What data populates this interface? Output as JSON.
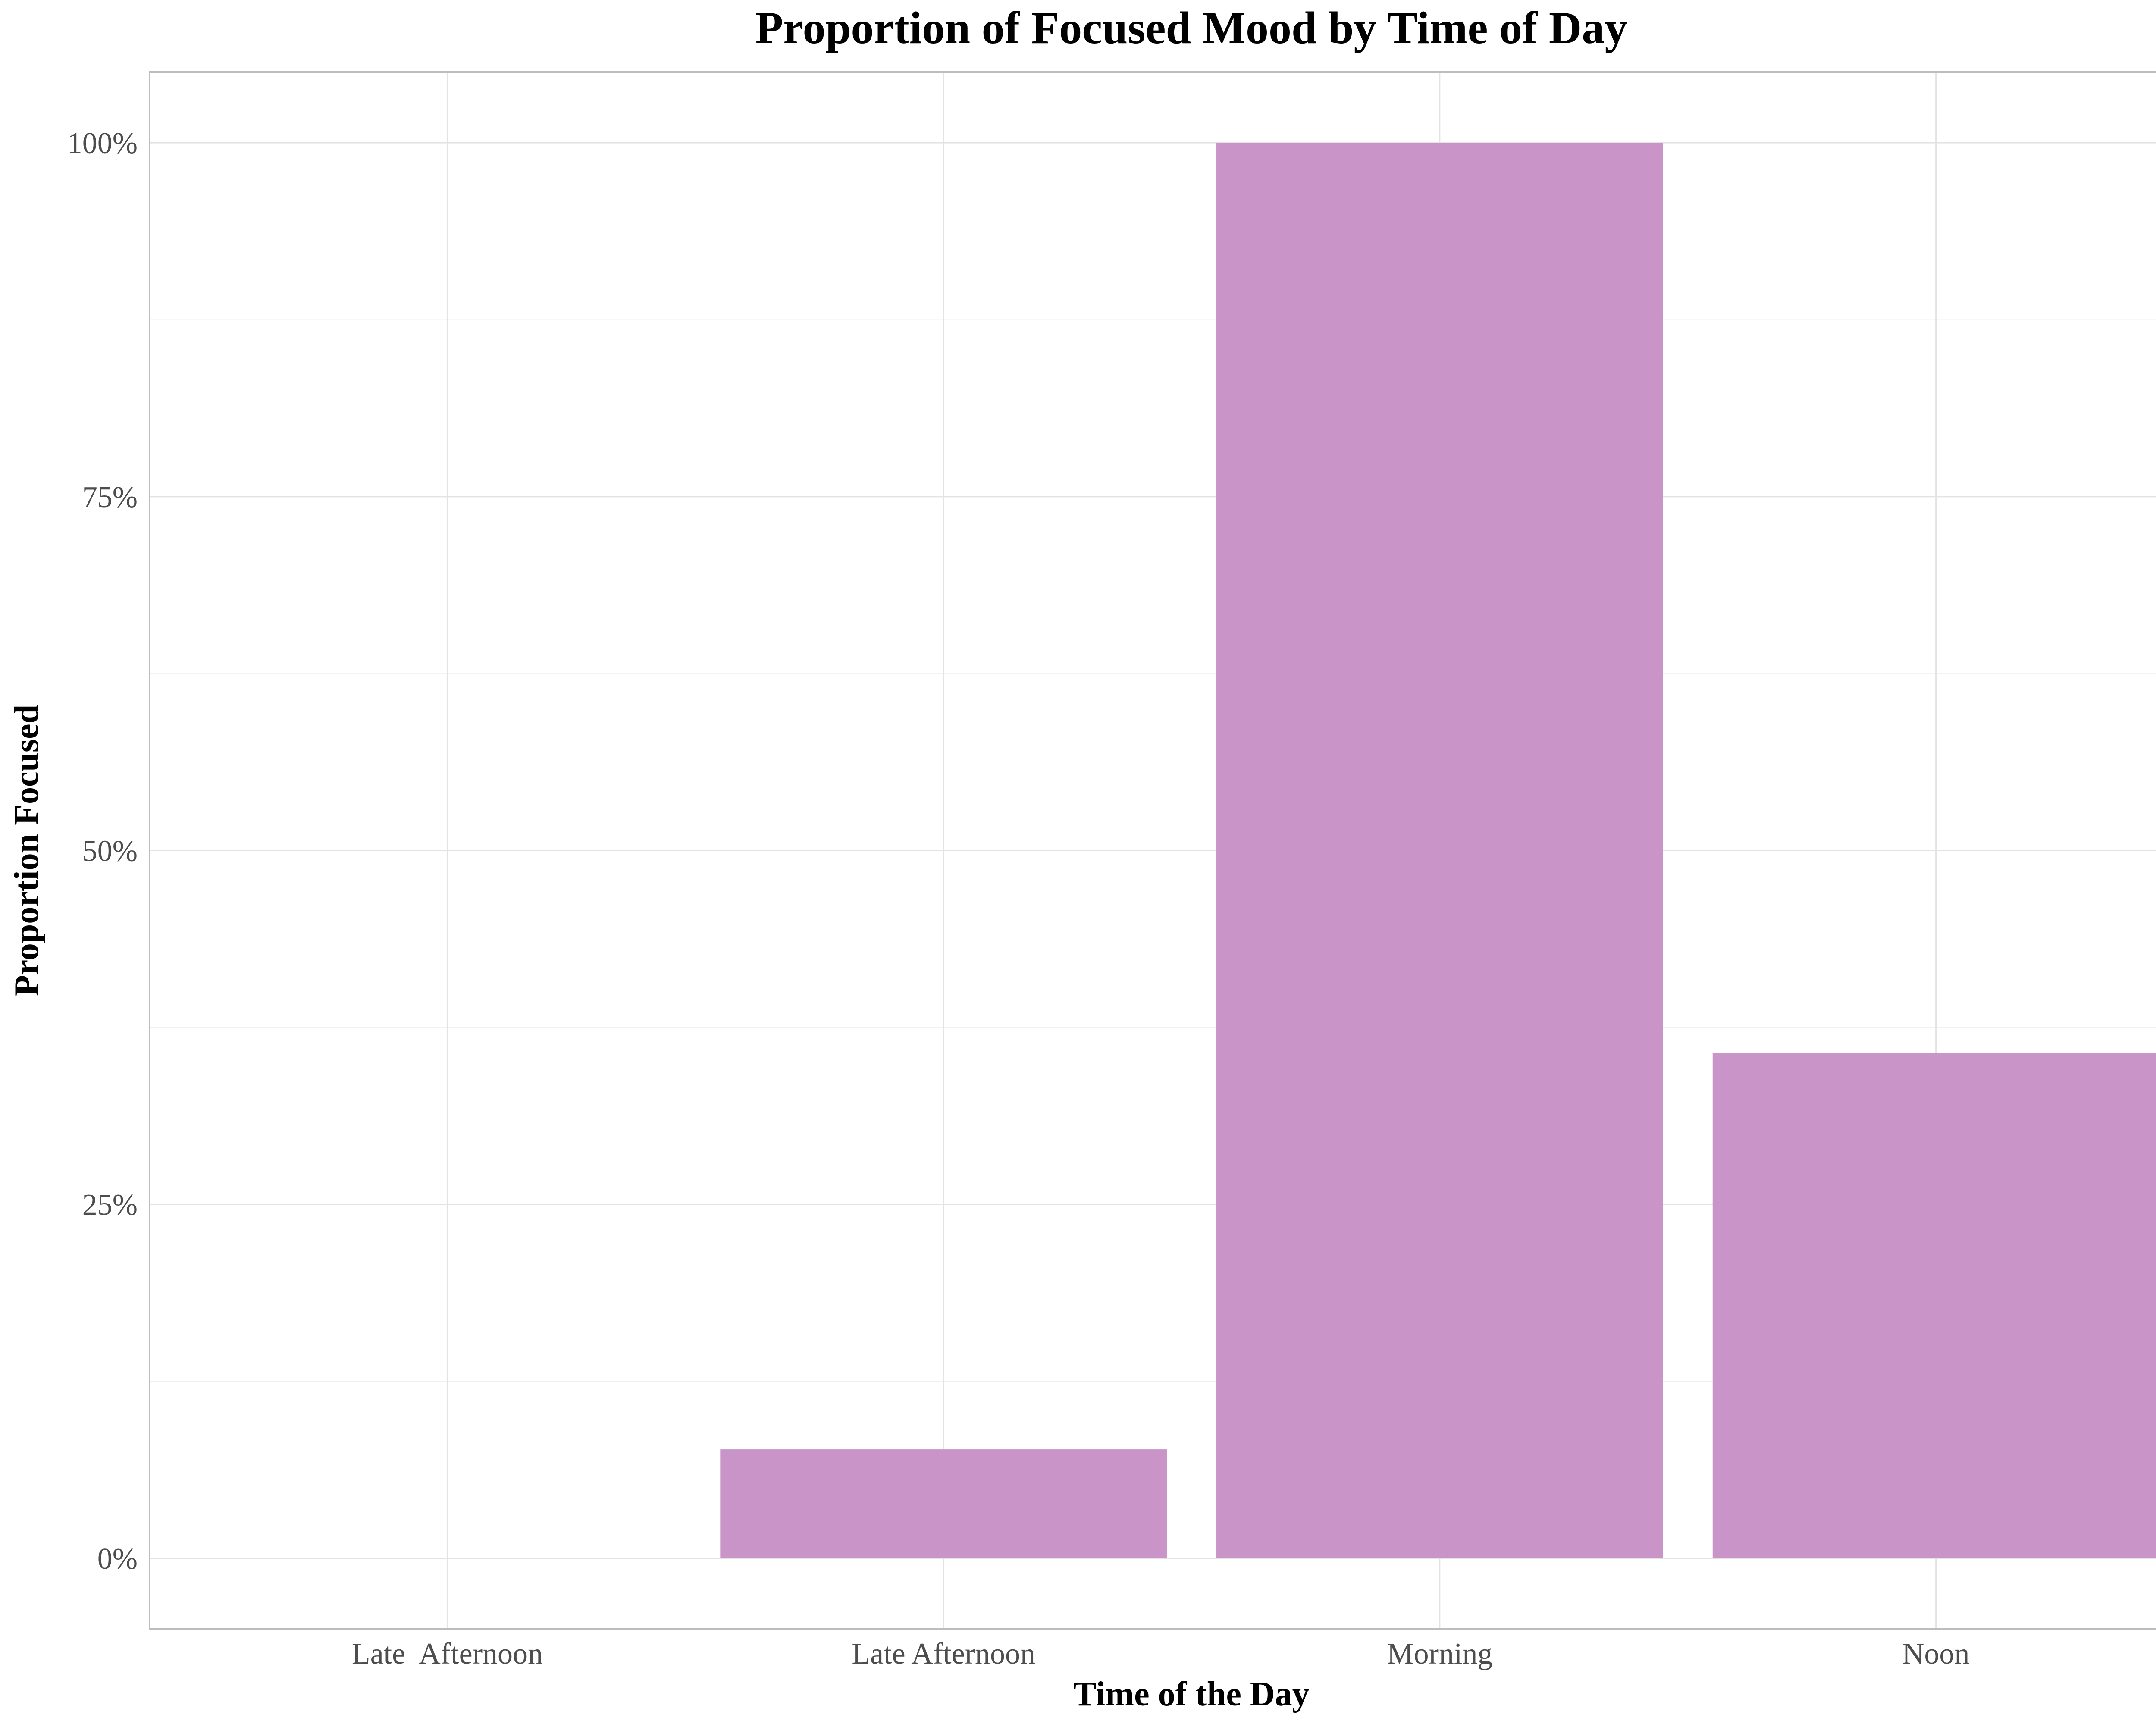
{
  "chart_data": {
    "type": "bar",
    "title": "Proportion of Focused Mood by Time of Day",
    "xlabel": "Time of the Day",
    "ylabel": "Proportion Focused",
    "categories": [
      "Late  Afternoon",
      "Late Afternoon",
      "Morning",
      "Noon"
    ],
    "values": [
      0,
      0.077,
      1.0,
      0.357
    ],
    "ylim": [
      -0.05,
      1.05
    ],
    "yticks": [
      0,
      0.25,
      0.5,
      0.75,
      1.0
    ],
    "ytick_labels": [
      "0%",
      "25%",
      "50%",
      "75%",
      "100%"
    ],
    "grid": true,
    "legend": "none",
    "colors": {
      "bar": "#C994C7",
      "grid_major": "#E3E3E3",
      "grid_minor": "#F0F0F0",
      "panel_border": "#BDBDBD",
      "tick_text": "#4D4D4D",
      "title_text": "#000000"
    }
  }
}
